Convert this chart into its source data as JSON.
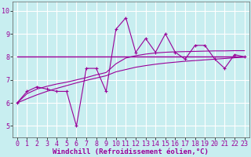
{
  "xlabel": "Windchill (Refroidissement éolien,°C)",
  "bg_color": "#c8eef0",
  "grid_color": "#ffffff",
  "line_color": "#990099",
  "x_data": [
    0,
    1,
    2,
    3,
    4,
    5,
    6,
    7,
    8,
    9,
    10,
    11,
    12,
    13,
    14,
    15,
    16,
    17,
    18,
    19,
    20,
    21,
    22,
    23
  ],
  "y_scatter": [
    6.0,
    6.5,
    6.7,
    6.6,
    6.5,
    6.5,
    5.0,
    7.5,
    7.5,
    6.5,
    9.2,
    9.7,
    8.2,
    8.8,
    8.2,
    9.0,
    8.2,
    7.9,
    8.5,
    8.5,
    7.9,
    7.5,
    8.1,
    8.0
  ],
  "y_smooth1": [
    8.0,
    8.0,
    8.0,
    8.0,
    8.0,
    8.0,
    8.0,
    8.0,
    8.0,
    8.0,
    8.0,
    8.0,
    8.0,
    8.0,
    8.0,
    8.0,
    8.0,
    8.0,
    8.0,
    8.0,
    8.0,
    8.0,
    8.0,
    8.0
  ],
  "y_smooth2": [
    6.0,
    6.18,
    6.35,
    6.5,
    6.63,
    6.75,
    6.87,
    6.98,
    7.08,
    7.18,
    7.35,
    7.45,
    7.55,
    7.62,
    7.68,
    7.73,
    7.77,
    7.81,
    7.84,
    7.87,
    7.9,
    7.93,
    7.96,
    7.99
  ],
  "y_smooth3": [
    6.0,
    6.4,
    6.6,
    6.72,
    6.82,
    6.9,
    7.0,
    7.1,
    7.22,
    7.32,
    7.7,
    7.95,
    8.05,
    8.12,
    8.17,
    8.2,
    8.22,
    8.23,
    8.24,
    8.25,
    8.26,
    8.26,
    8.27,
    8.27
  ],
  "ylim": [
    4.5,
    10.4
  ],
  "yticks": [
    5,
    6,
    7,
    8,
    9,
    10
  ],
  "xticks": [
    0,
    1,
    2,
    3,
    4,
    5,
    6,
    7,
    8,
    9,
    10,
    11,
    12,
    13,
    14,
    15,
    16,
    17,
    18,
    19,
    20,
    21,
    22,
    23
  ],
  "xlabel_fontsize": 6.5,
  "tick_fontsize": 6.0
}
